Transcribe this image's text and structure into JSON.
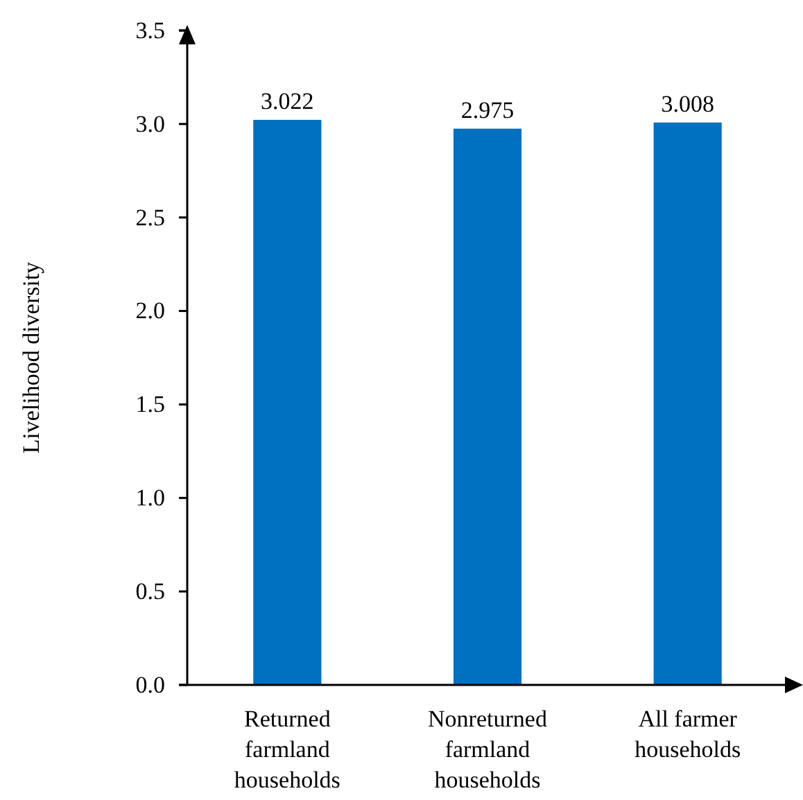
{
  "chart_data": {
    "type": "bar",
    "ylabel": "Livelihood diversity",
    "categories": [
      "Returned farmland households",
      "Nonreturned farmland households",
      "All farmer households"
    ],
    "values": [
      3.022,
      2.975,
      3.008
    ],
    "color": "#0070c0",
    "data_labels": true,
    "ylim": [
      0,
      3.5
    ],
    "yticks": [
      {
        "value": 0,
        "label": "0.0"
      },
      {
        "value": 0.5,
        "label": "0.5"
      },
      {
        "value": 1,
        "label": "1.0"
      },
      {
        "value": 1.5,
        "label": "1.5"
      },
      {
        "value": 2,
        "label": "2.0"
      },
      {
        "value": 2.5,
        "label": "2.5"
      },
      {
        "value": 3,
        "label": "3.0"
      },
      {
        "value": 3.5,
        "label": "3.5"
      }
    ],
    "grid": false
  }
}
